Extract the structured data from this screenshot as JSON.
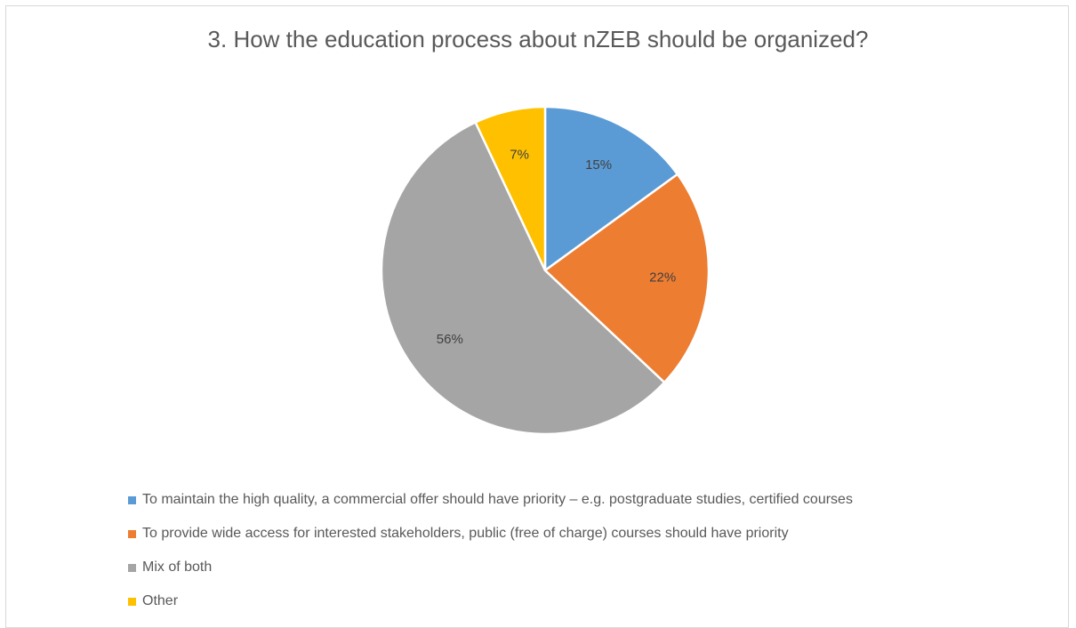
{
  "chart_data": {
    "type": "pie",
    "title": "3. How the education process about nZEB should be organized?",
    "categories": [
      "To maintain the high quality, a commercial offer should have priority – e.g. postgraduate studies, certified courses",
      "To provide wide access for interested stakeholders, public (free of charge) courses should have priority",
      "Mix of both",
      "Other"
    ],
    "values": [
      15,
      22,
      56,
      7
    ],
    "labels": [
      "15%",
      "22%",
      "56%",
      "7%"
    ],
    "colors": [
      "#5b9bd5",
      "#ed7d31",
      "#a5a5a5",
      "#ffc000"
    ],
    "legend_position": "bottom"
  }
}
